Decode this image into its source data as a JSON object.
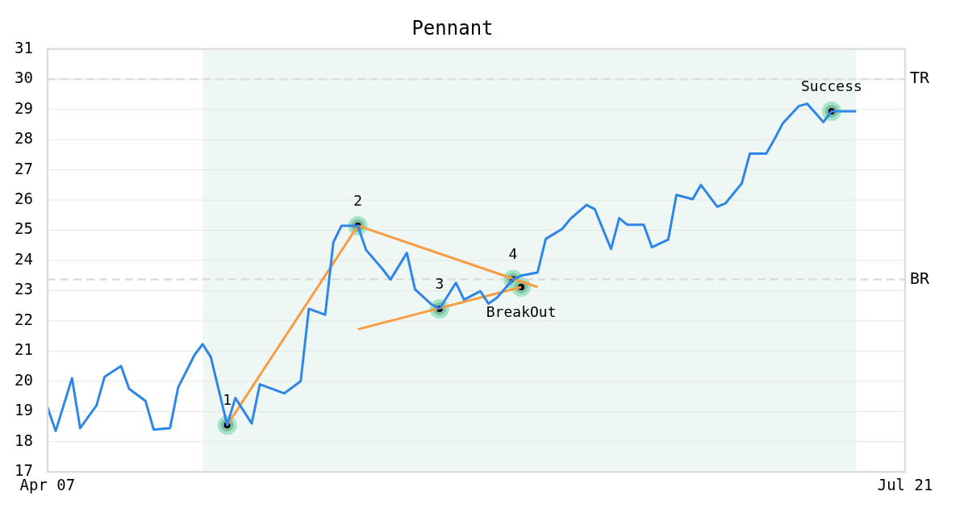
{
  "chart_data": {
    "type": "line",
    "title": "Pennant",
    "x": [
      "--04-07",
      "--04-08",
      "--04-10",
      "--04-11",
      "--04-13",
      "--04-14",
      "--04-16",
      "--04-17",
      "--04-19",
      "--04-20",
      "--04-22",
      "--04-23",
      "--04-25",
      "--04-26",
      "--04-27",
      "--04-29",
      "--04-30",
      "--05-02",
      "--05-03",
      "--05-05",
      "--05-06",
      "--05-08",
      "--05-09",
      "--05-11",
      "--05-12",
      "--05-13",
      "--05-15",
      "--05-16",
      "--05-18",
      "--05-19",
      "--05-21",
      "--05-22",
      "--05-24",
      "--05-25",
      "--05-27",
      "--05-28",
      "--05-30",
      "--05-31",
      "--06-01",
      "--06-03",
      "--06-04",
      "--06-06",
      "--06-07",
      "--06-09",
      "--06-10",
      "--06-12",
      "--06-13",
      "--06-15",
      "--06-16",
      "--06-17",
      "--06-19",
      "--06-20",
      "--06-22",
      "--06-23",
      "--06-25",
      "--06-26",
      "--06-28",
      "--06-29",
      "--07-01",
      "--07-02",
      "--07-04",
      "--07-05",
      "--07-06",
      "--07-08",
      "--07-09",
      "--07-11",
      "--07-12",
      "--07-14",
      "--07-15"
    ],
    "xlim": [
      "--04-07",
      "--07-21"
    ],
    "xticks": [
      {
        "value": "--04-07",
        "label": "Apr 07"
      },
      {
        "value": "--07-21",
        "label": "Jul 21"
      }
    ],
    "ylim": [
      17,
      31
    ],
    "yticks": [
      17,
      18,
      19,
      20,
      21,
      22,
      23,
      24,
      25,
      26,
      27,
      28,
      29,
      30,
      31
    ],
    "grid": "y",
    "marker": "none",
    "line_style": "solid",
    "series": [
      {
        "color": "#2e86e8",
        "values": [
          19.14,
          18.35,
          20.1,
          18.45,
          19.2,
          20.15,
          20.5,
          19.75,
          19.35,
          18.4,
          18.45,
          19.8,
          20.87,
          21.23,
          20.8,
          18.55,
          19.45,
          18.6,
          19.9,
          19.7,
          19.6,
          20.0,
          22.4,
          22.2,
          24.6,
          25.15,
          25.15,
          24.35,
          23.72,
          23.37,
          24.25,
          23.04,
          22.55,
          22.4,
          23.26,
          22.7,
          22.98,
          22.57,
          22.76,
          23.37,
          23.5,
          23.6,
          24.71,
          25.04,
          25.37,
          25.84,
          25.7,
          24.38,
          25.4,
          25.18,
          25.18,
          24.44,
          24.69,
          26.17,
          26.03,
          26.5,
          25.78,
          25.89,
          26.55,
          27.54,
          27.54,
          28.01,
          28.53,
          29.11,
          29.19,
          28.58,
          28.94,
          28.94,
          28.94
        ]
      },
      {
        "type": "line",
        "color": "#f99d45",
        "x": [
          "--04-29",
          "--05-15"
        ],
        "values": [
          18.55,
          25.15
        ]
      },
      {
        "type": "line",
        "color": "#f99d45",
        "x": [
          "--05-15",
          "--06-06"
        ],
        "values": [
          25.15,
          23.12
        ]
      },
      {
        "type": "line",
        "color": "#f99d45",
        "x": [
          "--05-15",
          "--06-04"
        ],
        "values": [
          21.72,
          23.12
        ]
      },
      {
        "type": "scatter",
        "marker": "circle",
        "color": "#000000",
        "x": [
          "--04-29",
          "--05-15",
          "--05-25",
          "--06-03",
          "--06-04",
          "--07-12"
        ],
        "values": [
          18.55,
          25.15,
          22.4,
          23.37,
          23.12,
          28.94
        ]
      }
    ],
    "ref_lines": [
      {
        "axis": "y",
        "value": 30,
        "label": "TR",
        "color": "#dddddd",
        "line_style": "dashed"
      },
      {
        "axis": "y",
        "value": 23.37,
        "label": "BR",
        "color": "#dddddd",
        "line_style": "dashed"
      }
    ],
    "bands": [
      {
        "axis": "x",
        "from": "--04-26",
        "to": "--07-15",
        "color": "#eef7f3"
      }
    ],
    "annotations": [
      {
        "text": "1",
        "x": "--04-29",
        "y": 18.55
      },
      {
        "text": "2",
        "x": "--05-15",
        "y": 25.15
      },
      {
        "text": "3",
        "x": "--05-25",
        "y": 22.4
      },
      {
        "text": "4",
        "x": "--06-03",
        "y": 23.37
      },
      {
        "text": "BreakOut",
        "x": "--06-04",
        "y": 23.12
      },
      {
        "text": "Success",
        "x": "--07-12",
        "y": 28.94
      }
    ]
  }
}
